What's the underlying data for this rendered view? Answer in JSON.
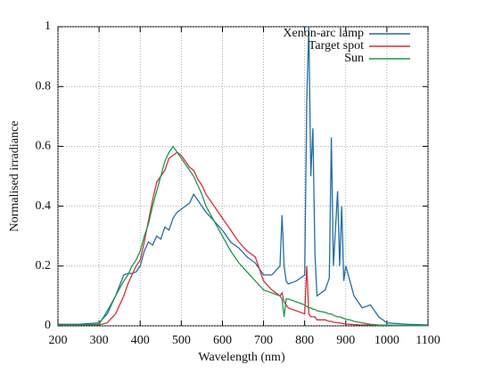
{
  "chart_data": {
    "type": "line",
    "xlabel": "Wavelength (nm)",
    "ylabel": "Normalised irradiance",
    "x": [
      200,
      250,
      300,
      320,
      340,
      360,
      370,
      380,
      390,
      400,
      410,
      420,
      430,
      440,
      450,
      460,
      470,
      480,
      490,
      500,
      510,
      520,
      530,
      540,
      550,
      560,
      580,
      600,
      620,
      640,
      660,
      680,
      700,
      720,
      740,
      745,
      750,
      755,
      760,
      780,
      800,
      805,
      810,
      815,
      820,
      825,
      830,
      850,
      860,
      865,
      870,
      880,
      885,
      890,
      895,
      900,
      910,
      920,
      940,
      960,
      980,
      1000,
      1050,
      1100
    ],
    "series": [
      {
        "name": "Xenon-arc lamp",
        "color": "#1f6fa8",
        "values": [
          0.005,
          0.005,
          0.01,
          0.04,
          0.1,
          0.17,
          0.175,
          0.175,
          0.18,
          0.2,
          0.25,
          0.28,
          0.27,
          0.3,
          0.29,
          0.33,
          0.32,
          0.36,
          0.38,
          0.39,
          0.4,
          0.41,
          0.44,
          0.42,
          0.4,
          0.38,
          0.35,
          0.32,
          0.28,
          0.26,
          0.23,
          0.21,
          0.17,
          0.17,
          0.2,
          0.37,
          0.2,
          0.15,
          0.14,
          0.15,
          0.17,
          0.75,
          1.0,
          0.5,
          0.66,
          0.24,
          0.1,
          0.12,
          0.16,
          0.63,
          0.2,
          0.45,
          0.2,
          0.4,
          0.15,
          0.2,
          0.15,
          0.1,
          0.06,
          0.07,
          0.03,
          0.01,
          0.005,
          0.003
        ]
      },
      {
        "name": "Target spot",
        "color": "#d62f3a",
        "values": [
          0.003,
          0.003,
          0.003,
          0.01,
          0.04,
          0.1,
          0.14,
          0.17,
          0.2,
          0.22,
          0.28,
          0.35,
          0.42,
          0.48,
          0.5,
          0.52,
          0.56,
          0.57,
          0.58,
          0.57,
          0.55,
          0.53,
          0.52,
          0.49,
          0.47,
          0.44,
          0.4,
          0.36,
          0.32,
          0.28,
          0.25,
          0.23,
          0.15,
          0.12,
          0.1,
          0.11,
          0.08,
          0.07,
          0.06,
          0.05,
          0.04,
          0.2,
          0.04,
          0.03,
          0.03,
          0.03,
          0.02,
          0.02,
          0.015,
          0.015,
          0.012,
          0.01,
          0.01,
          0.008,
          0.007,
          0.006,
          0.005,
          0.004,
          0.003,
          0.003,
          0.002,
          0.002,
          0.001,
          0.001
        ]
      },
      {
        "name": "Sun",
        "color": "#1a9a4a",
        "values": [
          0.003,
          0.003,
          0.005,
          0.05,
          0.1,
          0.15,
          0.17,
          0.2,
          0.22,
          0.25,
          0.3,
          0.34,
          0.4,
          0.45,
          0.5,
          0.55,
          0.58,
          0.6,
          0.58,
          0.56,
          0.54,
          0.52,
          0.5,
          0.47,
          0.44,
          0.4,
          0.35,
          0.3,
          0.25,
          0.21,
          0.18,
          0.15,
          0.12,
          0.11,
          0.1,
          0.09,
          0.03,
          0.09,
          0.09,
          0.08,
          0.07,
          0.065,
          0.06,
          0.06,
          0.055,
          0.055,
          0.05,
          0.045,
          0.04,
          0.04,
          0.035,
          0.03,
          0.03,
          0.028,
          0.025,
          0.022,
          0.02,
          0.015,
          0.01,
          0.005,
          0.003,
          0.002,
          0.001,
          0.001
        ]
      }
    ],
    "xlim": [
      200,
      1100
    ],
    "xticks": [
      200,
      300,
      400,
      500,
      600,
      700,
      800,
      900,
      1000,
      1100
    ],
    "ylim": [
      0,
      1
    ],
    "yticks": [
      0,
      0.2,
      0.4,
      0.6,
      0.8,
      1
    ],
    "grid": true,
    "legend": "top-right"
  }
}
